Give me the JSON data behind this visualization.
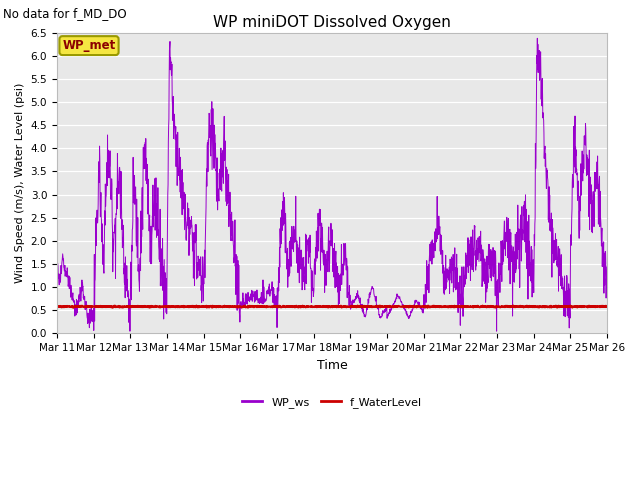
{
  "title": "WP miniDOT Dissolved Oxygen",
  "top_left_text": "No data for f_MD_DO",
  "ylabel": "Wind Speed (m/s), Water Level (psi)",
  "xlabel": "Time",
  "ylim": [
    0.0,
    6.5
  ],
  "yticks": [
    0.0,
    0.5,
    1.0,
    1.5,
    2.0,
    2.5,
    3.0,
    3.5,
    4.0,
    4.5,
    5.0,
    5.5,
    6.0,
    6.5
  ],
  "axes_facecolor": "#e8e8e8",
  "figure_facecolor": "#ffffff",
  "legend_box_label": "WP_met",
  "legend_box_facecolor": "#f5e642",
  "legend_box_edgecolor": "#999900",
  "legend_box_textcolor": "#8B0000",
  "ws_line_color": "#9900cc",
  "wl_line_color": "#cc0000",
  "water_level_value": 0.58,
  "x_tick_labels": [
    "Mar 11",
    "Mar 12",
    "Mar 13",
    "Mar 14",
    "Mar 15",
    "Mar 16",
    "Mar 17",
    "Mar 18",
    "Mar 19",
    "Mar 20",
    "Mar 21",
    "Mar 22",
    "Mar 23",
    "Mar 24",
    "Mar 25",
    "Mar 26"
  ],
  "title_fontsize": 11,
  "ylabel_fontsize": 8,
  "xlabel_fontsize": 9,
  "tick_fontsize": 7.5,
  "legend_fontsize": 8
}
